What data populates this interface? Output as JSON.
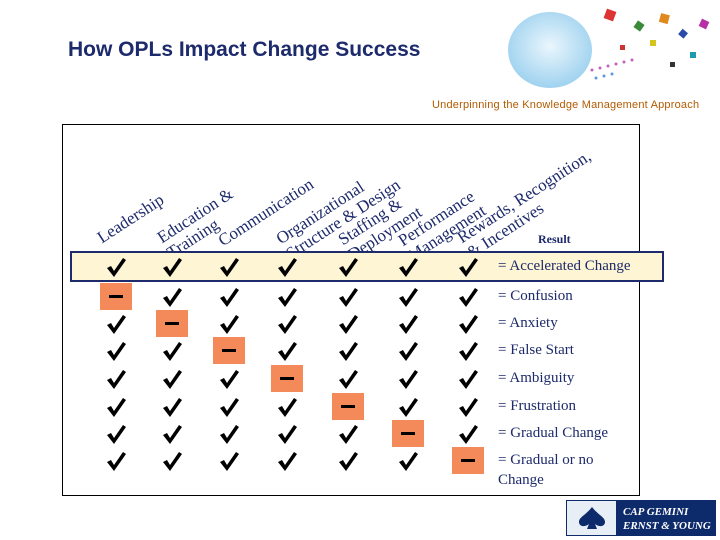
{
  "title": "How OPLs Impact Change Success",
  "subtitle": "Underpinning the Knowledge Management Approach",
  "columns": [
    {
      "lines": [
        "Leadership"
      ]
    },
    {
      "lines": [
        "Education &",
        "Training"
      ]
    },
    {
      "lines": [
        "Communication"
      ]
    },
    {
      "lines": [
        "Organizational",
        "Structure & Design"
      ]
    },
    {
      "lines": [
        "Staffing &",
        "Deployment"
      ]
    },
    {
      "lines": [
        "Performance",
        "Management"
      ]
    },
    {
      "lines": [
        "Rewards, Recognition,",
        "& Incentives"
      ]
    }
  ],
  "result_label": "Result",
  "rows": [
    {
      "result": "= Accelerated Change",
      "missing": null
    },
    {
      "result": "= Confusion",
      "missing": 0
    },
    {
      "result": "= Anxiety",
      "missing": 1
    },
    {
      "result": "= False Start",
      "missing": 2
    },
    {
      "result": "= Ambiguity",
      "missing": 3
    },
    {
      "result": "= Frustration",
      "missing": 4
    },
    {
      "result": "= Gradual Change",
      "missing": 5
    },
    {
      "result": "= Gradual or no Change",
      "missing": 6
    }
  ],
  "logo": {
    "line1": "CAP GEMINI",
    "line2": "ERNST & YOUNG"
  },
  "colors": {
    "accent": "#1d2a6b",
    "dash": "#f4895a",
    "highlight": "#fdf5d4"
  }
}
